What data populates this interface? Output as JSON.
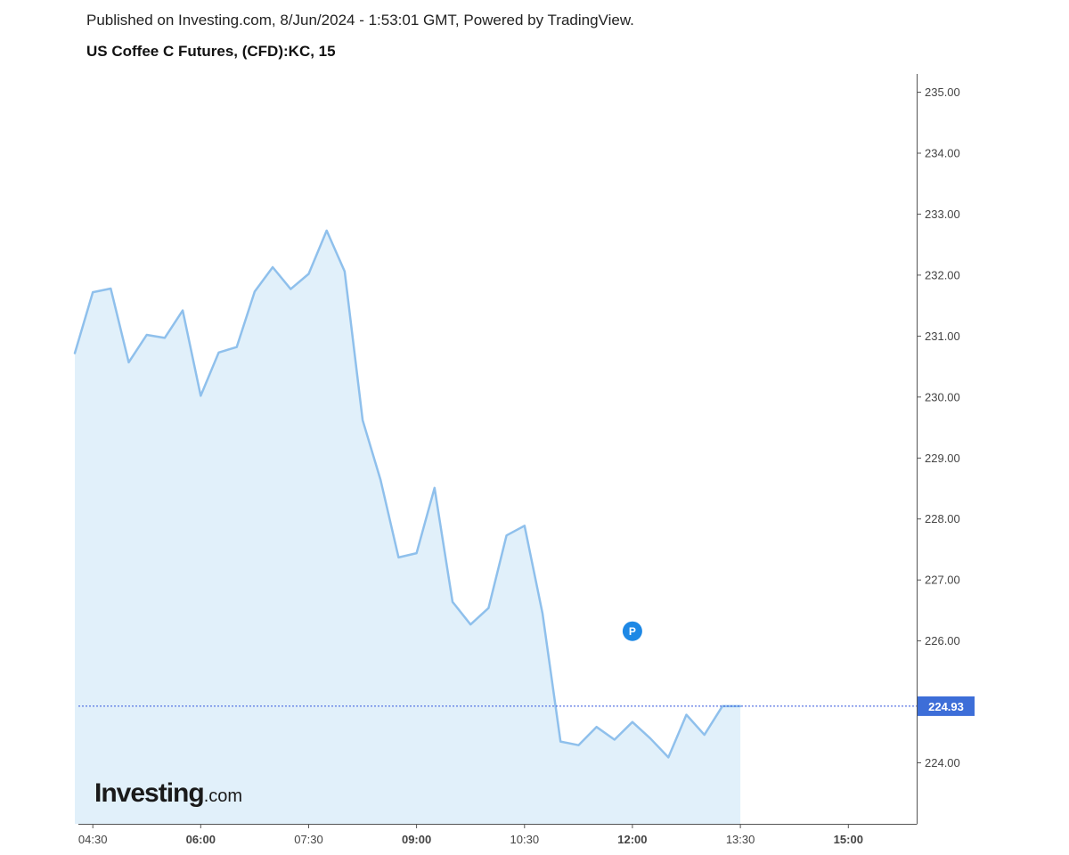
{
  "header": {
    "published": "Published on Investing.com, 8/Jun/2024 - 1:53:01 GMT, Powered by TradingView.",
    "title": "US Coffee C Futures, (CFD):KC, 15"
  },
  "logo": {
    "main": "Investing",
    "suffix": ".com"
  },
  "colors": {
    "line": "#8fc0ec",
    "fill": "#e1f0fa",
    "price_line": "#3355dd",
    "price_tag": "#3d6ed8",
    "marker": "#1e88e5",
    "axis": "#555555"
  },
  "chart_data": {
    "type": "area",
    "title": "US Coffee C Futures, (CFD):KC, 15",
    "xlabel": "",
    "ylabel": "",
    "ylim": [
      223.0,
      235.3
    ],
    "x_axis": {
      "ticks": [
        {
          "label": "04:30",
          "bold": false,
          "hour": 4.5
        },
        {
          "label": "06:00",
          "bold": true,
          "hour": 6.0
        },
        {
          "label": "07:30",
          "bold": false,
          "hour": 7.5
        },
        {
          "label": "09:00",
          "bold": true,
          "hour": 9.0
        },
        {
          "label": "10:30",
          "bold": false,
          "hour": 10.5
        },
        {
          "label": "12:00",
          "bold": true,
          "hour": 12.0
        },
        {
          "label": "13:30",
          "bold": false,
          "hour": 13.5
        },
        {
          "label": "15:00",
          "bold": true,
          "hour": 15.0
        }
      ],
      "range_hours": [
        4.3,
        15.95
      ]
    },
    "y_axis": {
      "ticks": [
        "224.00",
        "225.00",
        "226.00",
        "227.00",
        "228.00",
        "229.00",
        "230.00",
        "231.00",
        "232.00",
        "233.00",
        "234.00",
        "235.00"
      ]
    },
    "series": [
      {
        "times": [
          "04:15",
          "04:30",
          "04:45",
          "05:00",
          "05:15",
          "05:30",
          "05:45",
          "06:00",
          "06:15",
          "06:30",
          "06:45",
          "07:00",
          "07:15",
          "07:30",
          "07:45",
          "08:00",
          "08:15",
          "08:30",
          "08:45",
          "09:00",
          "09:15",
          "09:30",
          "09:45",
          "10:00",
          "10:15",
          "10:30",
          "10:45",
          "11:00",
          "11:15",
          "11:30",
          "11:45",
          "12:00",
          "12:15",
          "12:30",
          "12:45",
          "13:00",
          "13:15",
          "13:30"
        ],
        "hours": [
          4.25,
          4.5,
          4.75,
          5.0,
          5.25,
          5.5,
          5.75,
          6.0,
          6.25,
          6.5,
          6.75,
          7.0,
          7.25,
          7.5,
          7.75,
          8.0,
          8.25,
          8.5,
          8.75,
          9.0,
          9.25,
          9.5,
          9.75,
          10.0,
          10.25,
          10.5,
          10.75,
          11.0,
          11.25,
          11.5,
          11.75,
          12.0,
          12.25,
          12.5,
          12.75,
          13.0,
          13.25,
          13.5
        ],
        "values": [
          230.72,
          231.72,
          231.78,
          230.57,
          231.02,
          230.97,
          231.42,
          230.02,
          230.73,
          230.82,
          231.73,
          232.13,
          231.77,
          232.02,
          232.73,
          232.06,
          229.62,
          228.64,
          227.37,
          227.44,
          228.51,
          226.64,
          226.27,
          226.54,
          227.73,
          227.89,
          226.45,
          224.35,
          224.29,
          224.59,
          224.38,
          224.67,
          224.4,
          224.09,
          224.79,
          224.46,
          224.93,
          224.93
        ]
      }
    ],
    "last_price": 224.93,
    "last_price_label": "224.93",
    "marker": {
      "label": "P",
      "hour": 12.0,
      "value": 226.16
    }
  }
}
